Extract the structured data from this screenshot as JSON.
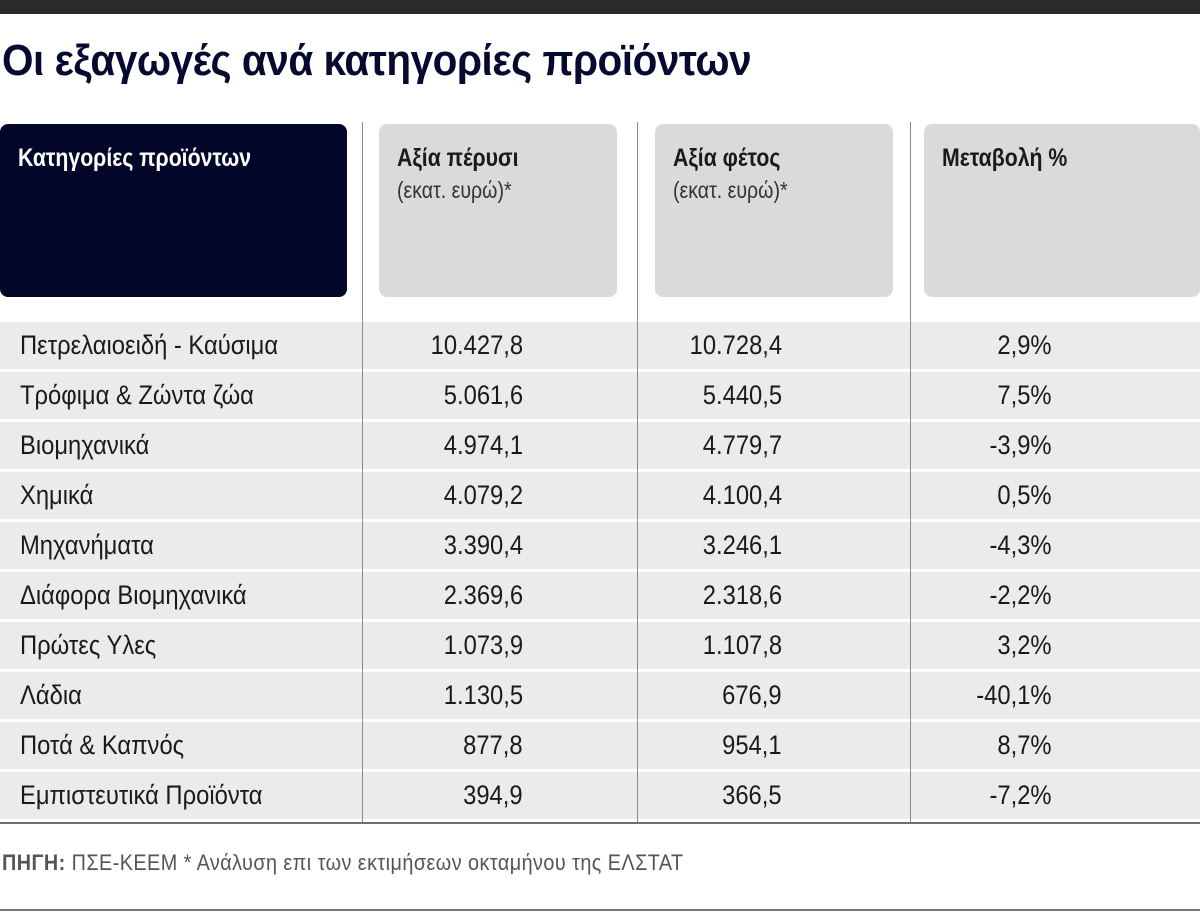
{
  "title": "Οι εξαγωγές ανά κατηγορίες προϊόντων",
  "headers": [
    {
      "main": "Κατηγορίες προϊόντων",
      "sub": ""
    },
    {
      "main": "Αξία πέρυσι",
      "sub": "(εκατ. ευρώ)*"
    },
    {
      "main": "Αξία φέτος",
      "sub": "(εκατ. ευρώ)*"
    },
    {
      "main": "Μεταβολή %",
      "sub": ""
    }
  ],
  "colors": {
    "header_dark": "#020629",
    "header_light": "#d9dadc",
    "row_bg": "#ebebeb",
    "title": "#050a2e"
  },
  "chart_data": {
    "type": "table",
    "title": "Οι εξαγωγές ανά κατηγορίες προϊόντων",
    "columns": [
      "Κατηγορίες προϊόντων",
      "Αξία πέρυσι (εκατ. ευρώ)*",
      "Αξία φέτος (εκατ. ευρώ)*",
      "Μεταβολή %"
    ],
    "rows": [
      [
        "Πετρελαιοειδή - Καύσιμα",
        "10.427,8",
        "10.728,4",
        "2,9%"
      ],
      [
        "Τρόφιμα & Ζώντα ζώα",
        "5.061,6",
        "5.440,5",
        "7,5%"
      ],
      [
        "Βιομηχανικά",
        "4.974,1",
        "4.779,7",
        "-3,9%"
      ],
      [
        "Χημικά",
        "4.079,2",
        "4.100,4",
        "0,5%"
      ],
      [
        "Μηχανήματα",
        "3.390,4",
        "3.246,1",
        "-4,3%"
      ],
      [
        "Διάφορα Βιομηχανικά",
        "2.369,6",
        "2.318,6",
        "-2,2%"
      ],
      [
        "Πρώτες Υλες",
        "1.073,9",
        "1.107,8",
        "3,2%"
      ],
      [
        "Λάδια",
        "1.130,5",
        "676,9",
        "-40,1%"
      ],
      [
        "Ποτά & Καπνός",
        "877,8",
        "954,1",
        "8,7%"
      ],
      [
        "Εμπιστευτικά Προϊόντα",
        "394,9",
        "366,5",
        "-7,2%"
      ]
    ]
  },
  "footer": {
    "label": "ΠΗΓΗ:",
    "text": " ΠΣΕ-ΚΕΕΜ * Ανάλυση επι των εκτιμήσεων οκταμήνου της ΕΛΣΤΑΤ"
  }
}
